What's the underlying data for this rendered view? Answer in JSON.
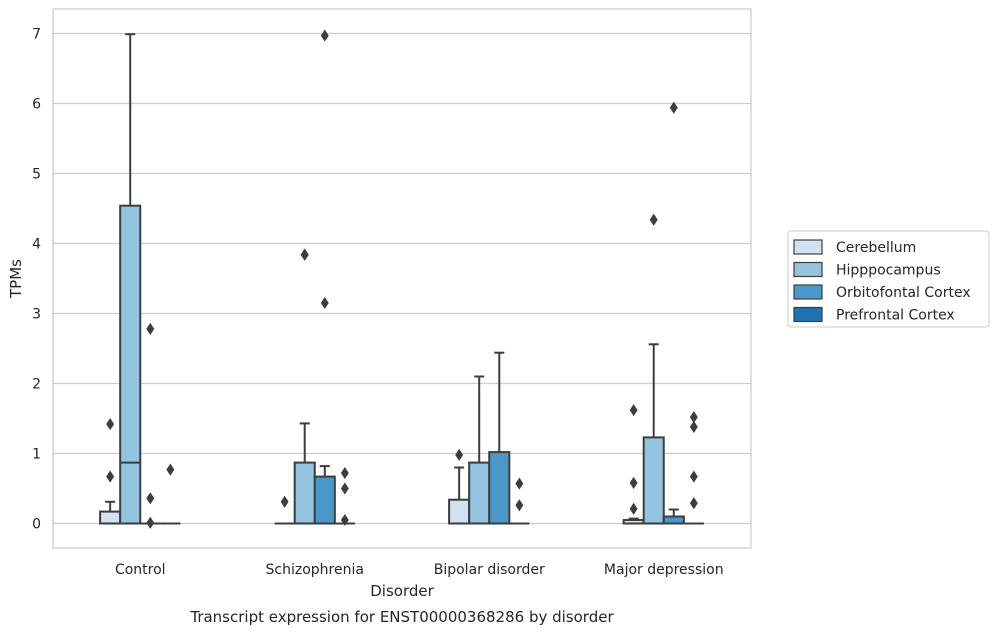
{
  "chart_data": {
    "type": "boxplot",
    "title": "Transcript expression for ENST00000368286 by disorder",
    "xlabel": "Disorder",
    "ylabel": "TPMs",
    "ylim": [
      -0.35,
      7.35
    ],
    "yticks": [
      0,
      1,
      2,
      3,
      4,
      5,
      6,
      7
    ],
    "grid": "horizontal",
    "legend_position": "right",
    "categories": [
      "Control",
      "Schizophrenia",
      "Bipolar disorder",
      "Major depression"
    ],
    "series": [
      {
        "name": "Cerebellum",
        "color": "#d0e1f2",
        "boxes": [
          {
            "q1": 0,
            "median": 0,
            "q3": 0.17,
            "whisker_low": 0,
            "whisker_high": 0.31,
            "outliers": [
              0.67,
              1.42
            ]
          },
          {
            "q1": 0,
            "median": 0,
            "q3": 0,
            "whisker_low": 0,
            "whisker_high": 0,
            "outliers": [
              0.31
            ]
          },
          {
            "q1": 0,
            "median": 0,
            "q3": 0.34,
            "whisker_low": 0,
            "whisker_high": 0.8,
            "outliers": [
              0.98
            ]
          },
          {
            "q1": 0,
            "median": 0,
            "q3": 0.05,
            "whisker_low": 0,
            "whisker_high": 0.07,
            "outliers": [
              0.21,
              0.58,
              1.62
            ]
          }
        ]
      },
      {
        "name": "Hipppocampus",
        "color": "#94c4df",
        "boxes": [
          {
            "q1": 0,
            "median": 0.87,
            "q3": 4.54,
            "whisker_low": 0,
            "whisker_high": 6.99,
            "outliers": []
          },
          {
            "q1": 0,
            "median": 0,
            "q3": 0.87,
            "whisker_low": 0,
            "whisker_high": 1.43,
            "outliers": [
              3.84,
              3.84
            ]
          },
          {
            "q1": 0,
            "median": 0,
            "q3": 0.87,
            "whisker_low": 0,
            "whisker_high": 2.1,
            "outliers": []
          },
          {
            "q1": 0,
            "median": 0,
            "q3": 1.23,
            "whisker_low": 0,
            "whisker_high": 2.56,
            "outliers": [
              4.34
            ]
          }
        ]
      },
      {
        "name": "Orbitofontal Cortex",
        "color": "#4a98c9",
        "boxes": [
          {
            "q1": 0,
            "median": 0,
            "q3": 0,
            "whisker_low": 0,
            "whisker_high": 0,
            "outliers": [
              0.01,
              0.36,
              2.78
            ]
          },
          {
            "q1": 0,
            "median": 0,
            "q3": 0.67,
            "whisker_low": 0,
            "whisker_high": 0.82,
            "outliers": [
              3.15,
              6.97
            ]
          },
          {
            "q1": 0,
            "median": 0,
            "q3": 1.02,
            "whisker_low": 0,
            "whisker_high": 2.44,
            "outliers": []
          },
          {
            "q1": 0,
            "median": 0,
            "q3": 0.1,
            "whisker_low": 0,
            "whisker_high": 0.2,
            "outliers": [
              5.94
            ]
          }
        ]
      },
      {
        "name": "Prefrontal Cortex",
        "color": "#2171b5",
        "boxes": [
          {
            "q1": 0,
            "median": 0,
            "q3": 0,
            "whisker_low": 0,
            "whisker_high": 0,
            "outliers": [
              0.77
            ]
          },
          {
            "q1": 0,
            "median": 0,
            "q3": 0,
            "whisker_low": 0,
            "whisker_high": 0,
            "outliers": [
              0.05,
              0.5,
              0.72
            ]
          },
          {
            "q1": 0,
            "median": 0,
            "q3": 0,
            "whisker_low": 0,
            "whisker_high": 0,
            "outliers": [
              0.26,
              0.57
            ]
          },
          {
            "q1": 0,
            "median": 0,
            "q3": 0,
            "whisker_low": 0,
            "whisker_high": 0,
            "outliers": [
              0.29,
              0.67,
              1.38,
              1.52
            ]
          }
        ]
      }
    ]
  }
}
